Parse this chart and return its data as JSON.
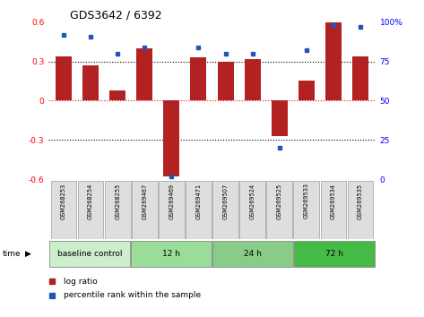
{
  "title": "GDS3642 / 6392",
  "samples": [
    "GSM268253",
    "GSM268254",
    "GSM268255",
    "GSM269467",
    "GSM269469",
    "GSM269471",
    "GSM269507",
    "GSM269524",
    "GSM269525",
    "GSM269533",
    "GSM269534",
    "GSM269535"
  ],
  "log_ratio": [
    0.34,
    0.27,
    0.08,
    0.4,
    -0.58,
    0.33,
    0.3,
    0.32,
    -0.27,
    0.15,
    0.6,
    0.34
  ],
  "percentile_rank": [
    92,
    91,
    80,
    84,
    2,
    84,
    80,
    80,
    20,
    82,
    98,
    97
  ],
  "bar_color": "#b22222",
  "dot_color": "#2255bb",
  "ylim": [
    -0.6,
    0.6
  ],
  "y2lim": [
    0,
    100
  ],
  "yticks": [
    -0.6,
    -0.3,
    0.0,
    0.3,
    0.6
  ],
  "y2ticks": [
    0,
    25,
    50,
    75,
    100
  ],
  "ytick_labels": [
    "-0.6",
    "-0.3",
    "0",
    "0.3",
    "0.6"
  ],
  "y2tick_labels": [
    "0",
    "25",
    "50",
    "75",
    "100%"
  ],
  "groups": [
    {
      "label": "baseline control",
      "start": 0,
      "end": 3,
      "color": "#cceecc"
    },
    {
      "label": "12 h",
      "start": 3,
      "end": 6,
      "color": "#99dd99"
    },
    {
      "label": "24 h",
      "start": 6,
      "end": 9,
      "color": "#88cc88"
    },
    {
      "label": "72 h",
      "start": 9,
      "end": 12,
      "color": "#44bb44"
    }
  ],
  "legend_bar_label": "log ratio",
  "legend_dot_label": "percentile rank within the sample",
  "background_color": "#ffffff"
}
